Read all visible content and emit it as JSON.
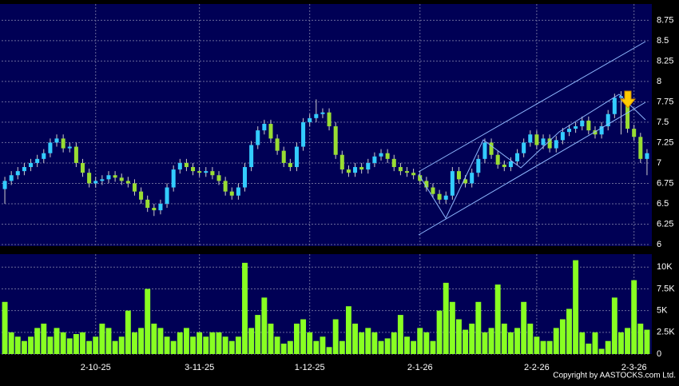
{
  "chart_data": [
    {
      "type": "candlestick",
      "xlim": [
        -0.5,
        99.5
      ],
      "ylim": [
        5.98,
        8.95
      ],
      "yticks": [
        6,
        6.25,
        6.5,
        6.75,
        7,
        7.25,
        7.5,
        7.75,
        8,
        8.25,
        8.5,
        8.75
      ],
      "grid": true,
      "up_color": "#33ccff",
      "down_color": "#99dd33",
      "open": [
        6.68,
        6.78,
        6.85,
        6.9,
        6.95,
        7.0,
        7.05,
        7.12,
        7.25,
        7.3,
        7.18,
        7.2,
        7.0,
        6.88,
        6.75,
        6.78,
        6.8,
        6.85,
        6.82,
        6.78,
        6.75,
        6.65,
        6.55,
        6.45,
        6.42,
        6.5,
        6.7,
        6.92,
        7.0,
        6.95,
        6.9,
        6.88,
        6.9,
        6.85,
        6.78,
        6.65,
        6.6,
        6.7,
        6.95,
        7.22,
        7.4,
        7.48,
        7.3,
        7.15,
        7.0,
        6.95,
        7.2,
        7.5,
        7.55,
        7.6,
        7.62,
        7.45,
        7.1,
        6.92,
        6.88,
        6.95,
        6.92,
        7.0,
        7.08,
        7.12,
        7.05,
        6.95,
        6.9,
        6.88,
        6.85,
        6.78,
        6.7,
        6.62,
        6.55,
        6.6,
        6.9,
        6.8,
        6.75,
        6.88,
        7.05,
        7.25,
        7.1,
        6.98,
        6.95,
        7.02,
        7.12,
        7.25,
        7.35,
        7.22,
        7.3,
        7.18,
        7.28,
        7.38,
        7.42,
        7.45,
        7.52,
        7.4,
        7.35,
        7.45,
        7.6,
        7.8,
        7.82,
        7.42,
        7.32,
        7.05
      ],
      "high": [
        6.83,
        6.9,
        6.95,
        7.0,
        7.05,
        7.1,
        7.17,
        7.3,
        7.35,
        7.35,
        7.25,
        7.25,
        7.05,
        6.93,
        6.83,
        6.85,
        6.9,
        6.9,
        6.87,
        6.83,
        6.8,
        6.7,
        6.6,
        6.5,
        6.55,
        6.75,
        6.97,
        7.05,
        7.05,
        7.0,
        6.95,
        6.95,
        6.95,
        6.9,
        6.83,
        6.7,
        6.75,
        7.0,
        7.27,
        7.45,
        7.53,
        7.53,
        7.35,
        7.2,
        7.05,
        7.25,
        7.55,
        7.6,
        7.78,
        7.67,
        7.67,
        7.5,
        7.15,
        6.97,
        7.0,
        7.0,
        7.05,
        7.13,
        7.17,
        7.17,
        7.1,
        7.0,
        6.95,
        6.93,
        6.9,
        6.83,
        6.75,
        6.67,
        6.65,
        6.95,
        6.95,
        6.85,
        6.93,
        7.1,
        7.3,
        7.3,
        7.15,
        7.03,
        7.07,
        7.17,
        7.3,
        7.4,
        7.4,
        7.35,
        7.35,
        7.33,
        7.43,
        7.47,
        7.5,
        7.57,
        7.57,
        7.45,
        7.5,
        7.65,
        7.85,
        7.88,
        7.87,
        7.47,
        7.37,
        7.17
      ],
      "low": [
        6.5,
        6.73,
        6.8,
        6.85,
        6.9,
        6.95,
        7.0,
        7.07,
        7.2,
        7.13,
        7.13,
        6.95,
        6.83,
        6.7,
        6.7,
        6.73,
        6.75,
        6.77,
        6.73,
        6.7,
        6.6,
        6.5,
        6.4,
        6.35,
        6.37,
        6.45,
        6.65,
        6.87,
        6.9,
        6.85,
        6.83,
        6.83,
        6.8,
        6.73,
        6.6,
        6.55,
        6.55,
        6.65,
        6.9,
        7.17,
        7.35,
        7.25,
        7.1,
        6.95,
        6.9,
        6.9,
        7.15,
        7.45,
        7.5,
        7.55,
        7.4,
        7.05,
        6.87,
        6.83,
        6.83,
        6.87,
        6.87,
        6.95,
        7.03,
        7.0,
        6.9,
        6.85,
        6.83,
        6.8,
        6.73,
        6.65,
        6.57,
        6.5,
        6.5,
        6.55,
        6.75,
        6.7,
        6.7,
        6.83,
        7.0,
        7.05,
        6.93,
        6.9,
        6.9,
        6.97,
        7.07,
        7.2,
        7.17,
        7.17,
        7.13,
        7.13,
        7.23,
        7.33,
        7.37,
        7.4,
        7.35,
        7.3,
        7.3,
        7.4,
        7.55,
        7.35,
        7.37,
        7.27,
        7.0,
        6.85
      ],
      "close": [
        6.78,
        6.85,
        6.9,
        6.95,
        7.0,
        7.05,
        7.12,
        7.25,
        7.3,
        7.18,
        7.2,
        7.0,
        6.88,
        6.75,
        6.78,
        6.8,
        6.85,
        6.82,
        6.78,
        6.75,
        6.65,
        6.55,
        6.45,
        6.42,
        6.5,
        6.7,
        6.92,
        7.0,
        6.95,
        6.9,
        6.88,
        6.9,
        6.85,
        6.78,
        6.65,
        6.6,
        6.7,
        6.95,
        7.22,
        7.4,
        7.48,
        7.3,
        7.15,
        7.0,
        6.95,
        7.2,
        7.5,
        7.55,
        7.6,
        7.62,
        7.45,
        7.1,
        6.92,
        6.88,
        6.95,
        6.92,
        7.0,
        7.08,
        7.12,
        7.05,
        6.95,
        6.9,
        6.88,
        6.85,
        6.78,
        6.7,
        6.62,
        6.55,
        6.6,
        6.9,
        6.8,
        6.75,
        6.88,
        7.05,
        7.25,
        7.1,
        6.98,
        6.95,
        7.02,
        7.12,
        7.25,
        7.35,
        7.22,
        7.3,
        7.18,
        7.28,
        7.38,
        7.42,
        7.45,
        7.52,
        7.4,
        7.35,
        7.45,
        7.6,
        7.8,
        7.82,
        7.42,
        7.32,
        7.05,
        7.12
      ]
    },
    {
      "type": "bar",
      "color": "#88ff22",
      "xlim": [
        -0.5,
        99.5
      ],
      "ylim": [
        0,
        11500
      ],
      "yticks": [
        0,
        {
          "value": 2500,
          "label": "2.5K"
        },
        {
          "value": 5000,
          "label": "5K"
        },
        {
          "value": 7500,
          "label": "7.5K"
        },
        {
          "value": 10000,
          "label": "10K"
        }
      ],
      "xticks": [
        {
          "value": 14,
          "label": "2-10-25"
        },
        {
          "value": 30,
          "label": "3-11-25"
        },
        {
          "value": 47,
          "label": "1-12-25"
        },
        {
          "value": 64,
          "label": "2-1-26"
        },
        {
          "value": 82,
          "label": "2-2-26"
        },
        {
          "value": 97,
          "label": "2-3-26"
        }
      ],
      "grid": true,
      "values": [
        6000,
        2500,
        2000,
        1500,
        2000,
        3000,
        3500,
        2000,
        3000,
        2500,
        1800,
        2300,
        2500,
        1500,
        2000,
        3500,
        3000,
        1500,
        2000,
        5000,
        2500,
        3000,
        7500,
        3500,
        3000,
        2000,
        1500,
        2500,
        3000,
        2000,
        2500,
        2000,
        2500,
        2500,
        2000,
        1500,
        2000,
        10500,
        3000,
        4500,
        6500,
        3500,
        2000,
        1200,
        1500,
        3500,
        4000,
        2500,
        1500,
        2000,
        800,
        4000,
        1500,
        5500,
        3500,
        2500,
        3000,
        2500,
        1500,
        1800,
        2500,
        4500,
        2000,
        1500,
        3000,
        2500,
        1500,
        5000,
        8200,
        6000,
        4000,
        2800,
        3500,
        6000,
        2500,
        3000,
        8000,
        3500,
        2500,
        3000,
        6000,
        3500,
        2000,
        1500,
        1500,
        3000,
        4000,
        5200,
        10800,
        2500,
        1200,
        2500,
        600,
        1500,
        6500,
        2500,
        3000,
        8500,
        3500,
        2800
      ]
    }
  ],
  "copyright": "Copyright by AASTOCKS.com Ltd."
}
